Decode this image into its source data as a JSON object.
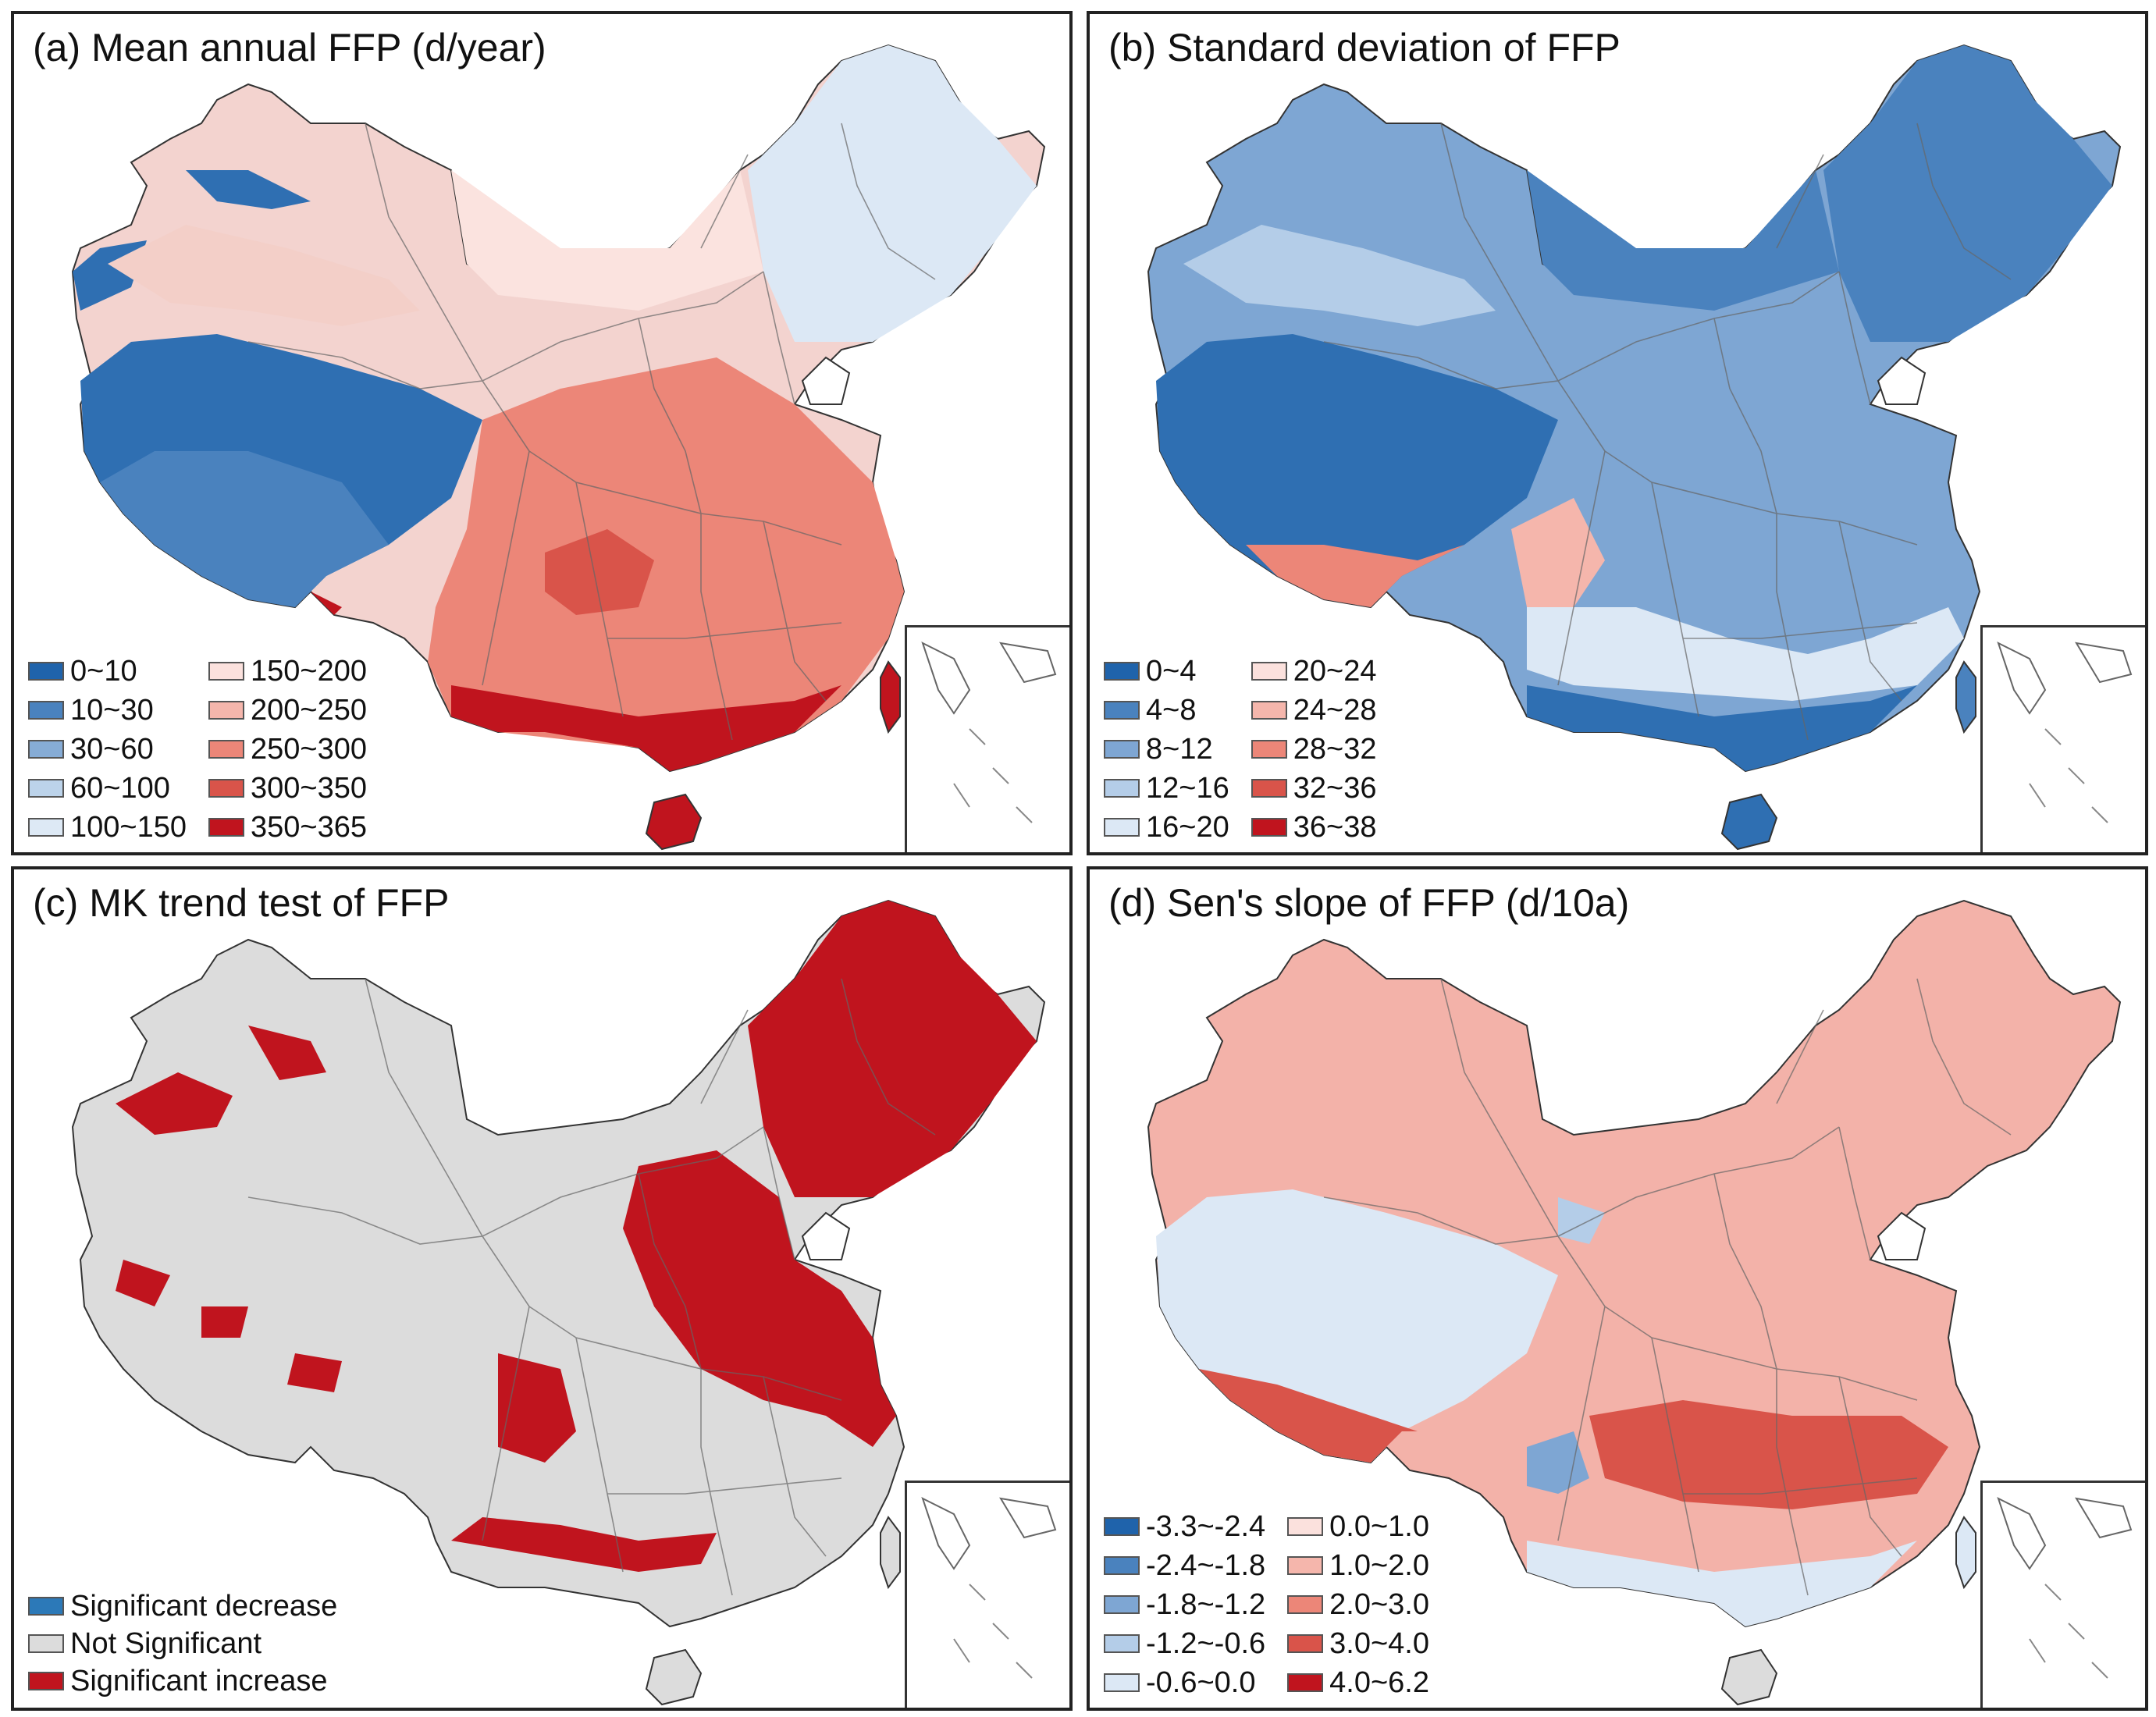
{
  "panels": {
    "a": {
      "title": "(a) Mean annual FFP (d/year)",
      "base_color": "#f1c9c4",
      "legend": [
        {
          "label": "0~10",
          "color": "#1f63ab"
        },
        {
          "label": "10~30",
          "color": "#4a82be"
        },
        {
          "label": "30~60",
          "color": "#86acd6"
        },
        {
          "label": "60~100",
          "color": "#bcd3ea"
        },
        {
          "label": "100~150",
          "color": "#dde9f5"
        },
        {
          "label": "150~200",
          "color": "#fbe1dd"
        },
        {
          "label": "200~250",
          "color": "#f5b6ac"
        },
        {
          "label": "250~300",
          "color": "#ec8678"
        },
        {
          "label": "300~350",
          "color": "#d9544a"
        },
        {
          "label": "350~365",
          "color": "#c0141e"
        }
      ]
    },
    "b": {
      "title": "(b) Standard deviation of FFP",
      "base_color": "#7ea6d3",
      "legend": [
        {
          "label": "0~4",
          "color": "#1f63ab"
        },
        {
          "label": "4~8",
          "color": "#4a82be"
        },
        {
          "label": "8~12",
          "color": "#7ea6d3"
        },
        {
          "label": "12~16",
          "color": "#b4cde8"
        },
        {
          "label": "16~20",
          "color": "#dce8f5"
        },
        {
          "label": "20~24",
          "color": "#fbe1dd"
        },
        {
          "label": "24~28",
          "color": "#f5b6ac"
        },
        {
          "label": "28~32",
          "color": "#ec8678"
        },
        {
          "label": "32~36",
          "color": "#d9544a"
        },
        {
          "label": "36~38",
          "color": "#c0141e"
        }
      ]
    },
    "c": {
      "title": "(c) MK trend test of FFP",
      "base_color": "#dcdcdc",
      "legend": [
        {
          "label": "Significant decrease",
          "color": "#2c79b8"
        },
        {
          "label": "Not Significant",
          "color": "#dcdcdc"
        },
        {
          "label": "Significant increase",
          "color": "#c0141e"
        }
      ]
    },
    "d": {
      "title": "(d) Sen's slope of FFP (d/10a)",
      "base_color": "#f1a9a0",
      "legend": [
        {
          "label": "-3.3~-2.4",
          "color": "#1f63ab"
        },
        {
          "label": "-2.4~-1.8",
          "color": "#4a82be"
        },
        {
          "label": "-1.8~-1.2",
          "color": "#7ea6d3"
        },
        {
          "label": "-1.2~-0.6",
          "color": "#b4cde8"
        },
        {
          "label": "-0.6~0.0",
          "color": "#dce8f5"
        },
        {
          "label": "0.0~1.0",
          "color": "#fbe1dd"
        },
        {
          "label": "1.0~2.0",
          "color": "#f5b6ac"
        },
        {
          "label": "2.0~3.0",
          "color": "#ec8678"
        },
        {
          "label": "3.0~4.0",
          "color": "#d9544a"
        },
        {
          "label": "4.0~6.2",
          "color": "#c0141e"
        }
      ]
    }
  }
}
